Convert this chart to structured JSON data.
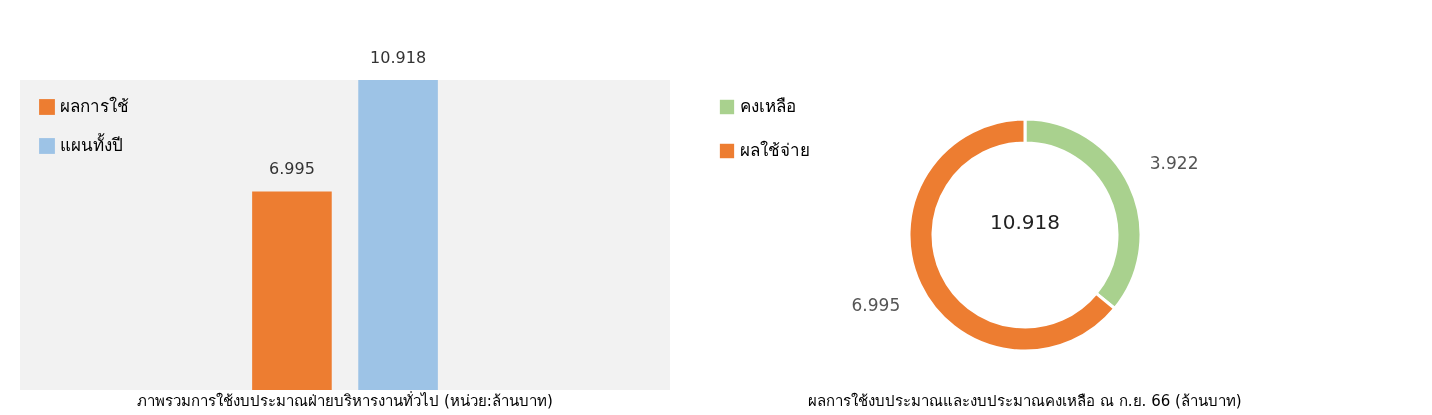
{
  "chart_data": [
    {
      "type": "bar",
      "title": "ภาพรวมการใช้งบประมาณฝ่ายบริหารงานทั่วไป (หน่วย:ล้านบาท)",
      "categories": [
        null
      ],
      "series": [
        {
          "name": "ผลการใช้",
          "color": "#ed7d31",
          "values": [
            6.995
          ]
        },
        {
          "name": "แผนทั้งปี",
          "color": "#9dc3e6",
          "values": [
            10.918
          ]
        }
      ],
      "data_labels": true,
      "legend": "top left",
      "grid": false
    },
    {
      "type": "donut",
      "title": "ผลการใช้งบประมาณและงบประมาณคงเหลือ ณ ก.ย. 66 (ล้านบาท)",
      "categories": [
        "คงเหลือ",
        "ผลใช้จ่าย"
      ],
      "values": [
        3.922,
        6.995
      ],
      "colors": [
        "#a9d18e",
        "#ed7d31"
      ],
      "data_labels": true,
      "legend": "top left",
      "annotations": [
        "10.918"
      ]
    }
  ]
}
